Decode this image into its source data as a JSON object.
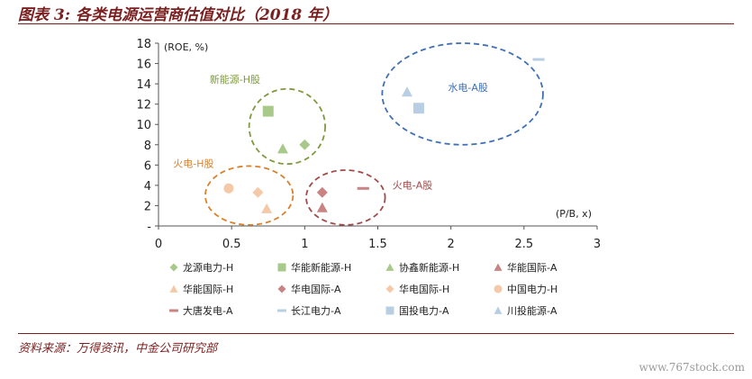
{
  "figure": {
    "title": "图表 3: 各类电源运营商估值对比（2018 年）",
    "source": "资料来源：万得资讯，中金公司研究部",
    "watermark": "www.767stock.com"
  },
  "chart_data": {
    "type": "scatter",
    "xlabel": "(P/B, x)",
    "ylabel": "(ROE, %)",
    "xlim": [
      0,
      3
    ],
    "ylim": [
      0,
      18
    ],
    "x_ticks": [
      0,
      0.5,
      1,
      1.5,
      2,
      2.5,
      3
    ],
    "x_tick_labels": [
      "0",
      "0.5",
      "1",
      "1.5",
      "2",
      "2.5",
      "3"
    ],
    "y_ticks": [
      0,
      2,
      4,
      6,
      8,
      10,
      12,
      14,
      16,
      18
    ],
    "y_tick_labels": [
      "-",
      "2",
      "4",
      "6",
      "8",
      "10",
      "12",
      "14",
      "16",
      "18"
    ],
    "grid": false,
    "legend_position": "bottom",
    "series": [
      {
        "name": "龙源电力-H",
        "marker": "diamond",
        "color": "#a9c98b",
        "points": [
          {
            "x": 1.0,
            "y": 8.0
          }
        ]
      },
      {
        "name": "华能新能源-H",
        "marker": "square",
        "color": "#a9c98b",
        "points": [
          {
            "x": 0.75,
            "y": 11.3
          }
        ]
      },
      {
        "name": "协鑫新能源-H",
        "marker": "triangle",
        "color": "#a9c98b",
        "points": [
          {
            "x": 0.85,
            "y": 7.6
          }
        ]
      },
      {
        "name": "华能国际-A",
        "marker": "triangle",
        "color": "#c98383",
        "points": [
          {
            "x": 1.12,
            "y": 1.8
          }
        ]
      },
      {
        "name": "华能国际-H",
        "marker": "triangle",
        "color": "#f5c9a8",
        "points": [
          {
            "x": 0.74,
            "y": 1.7
          }
        ]
      },
      {
        "name": "华电国际-A",
        "marker": "diamond",
        "color": "#c98383",
        "points": [
          {
            "x": 1.12,
            "y": 3.3
          }
        ]
      },
      {
        "name": "华电国际-H",
        "marker": "diamond",
        "color": "#f5c9a8",
        "points": [
          {
            "x": 0.68,
            "y": 3.3
          }
        ]
      },
      {
        "name": "中国电力-H",
        "marker": "circle",
        "color": "#f5c9a8",
        "points": [
          {
            "x": 0.48,
            "y": 3.7
          }
        ]
      },
      {
        "name": "大唐发电-A",
        "marker": "dash",
        "color": "#c98383",
        "points": [
          {
            "x": 1.4,
            "y": 3.7
          }
        ]
      },
      {
        "name": "长江电力-A",
        "marker": "dash",
        "color": "#b8cfe3",
        "points": [
          {
            "x": 2.6,
            "y": 16.4
          }
        ]
      },
      {
        "name": "国投电力-A",
        "marker": "square",
        "color": "#b8cfe3",
        "points": [
          {
            "x": 1.78,
            "y": 11.6
          }
        ]
      },
      {
        "name": "川投能源-A",
        "marker": "triangle",
        "color": "#b8cfe3",
        "points": [
          {
            "x": 1.7,
            "y": 13.2
          }
        ]
      }
    ],
    "groups": [
      {
        "label": "新能源-H股",
        "color": "#7f9a3e",
        "cx": 0.88,
        "cy": 9.8,
        "rx": 0.26,
        "ry": 3.7,
        "label_x": 0.35,
        "label_y": 14.1
      },
      {
        "label": "火电-H股",
        "color": "#d9812f",
        "cx": 0.62,
        "cy": 3.0,
        "rx": 0.3,
        "ry": 2.9,
        "label_x": 0.1,
        "label_y": 5.8
      },
      {
        "label": "火电-A股",
        "color": "#a04b4b",
        "cx": 1.28,
        "cy": 2.8,
        "rx": 0.27,
        "ry": 2.7,
        "label_x": 1.6,
        "label_y": 3.7
      },
      {
        "label": "水电-A股",
        "color": "#3f6fb5",
        "cx": 2.08,
        "cy": 13.0,
        "rx": 0.55,
        "ry": 5.0,
        "label_x": 1.98,
        "label_y": 13.3
      }
    ]
  }
}
